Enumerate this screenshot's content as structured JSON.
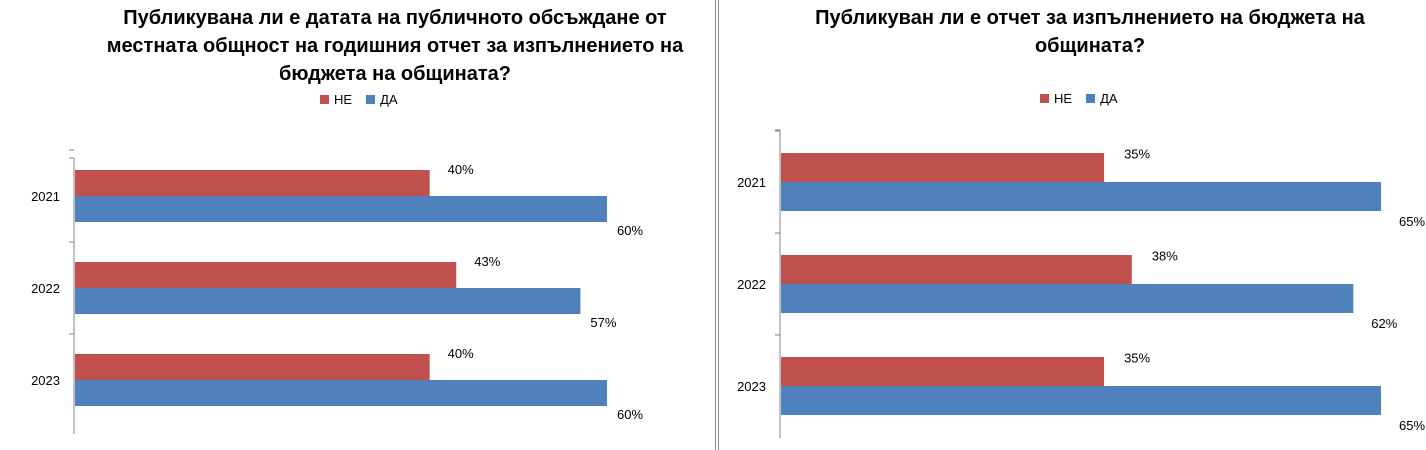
{
  "chart_data": [
    {
      "type": "bar",
      "orientation": "horizontal",
      "title": "Публикувана ли е датата на публичното обсъждане от местната общност на годишния отчет за изпълнението на бюджета на общината?",
      "categories": [
        "2021",
        "2022",
        "2023"
      ],
      "series": [
        {
          "name": "НЕ",
          "color": "#c0504d",
          "values": [
            40,
            43,
            40
          ],
          "labels": [
            "40%",
            "43%",
            "40%"
          ]
        },
        {
          "name": "ДА",
          "color": "#4f81bd",
          "values": [
            60,
            57,
            60
          ],
          "labels": [
            "60%",
            "57%",
            "60%"
          ]
        }
      ],
      "xlim": [
        0,
        60
      ],
      "legend": "top"
    },
    {
      "type": "bar",
      "orientation": "horizontal",
      "title": "Публикуван ли е отчет за изпълнението на бюджета на общината?",
      "categories": [
        "2021",
        "2022",
        "2023"
      ],
      "series": [
        {
          "name": "НЕ",
          "color": "#c0504d",
          "values": [
            35,
            38,
            35
          ],
          "labels": [
            "35%",
            "38%",
            "35%"
          ]
        },
        {
          "name": "ДА",
          "color": "#4f81bd",
          "values": [
            65,
            62,
            65
          ],
          "labels": [
            "65%",
            "62%",
            "65%"
          ]
        }
      ],
      "xlim": [
        0,
        65
      ],
      "legend": "top"
    }
  ]
}
